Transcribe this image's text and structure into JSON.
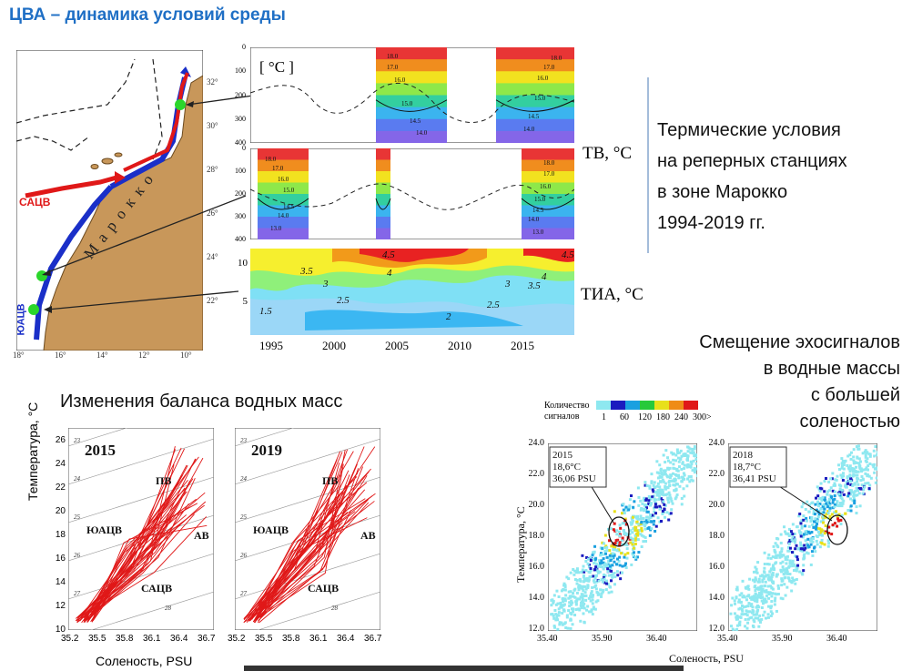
{
  "slide": {
    "title": "ЦВА – динамика условий среды",
    "caption_thermal": [
      "Термические условия",
      "на реперных станциях",
      "в зоне Марокко",
      "1994-2019 гг."
    ],
    "caption_balance": "Изменения баланса водных масс",
    "caption_echo": [
      "Смещение эхосигналов",
      "в водные массы",
      "с большей",
      "соленостью"
    ]
  },
  "map": {
    "country_label": "Марокко",
    "current_north": "САЦВ",
    "current_south": "ЮАЦВ",
    "lat_ticks": [
      "32°",
      "30°",
      "28°",
      "26°",
      "24°",
      "22°"
    ],
    "lon_ticks": [
      "18°",
      "16°",
      "14°",
      "12°",
      "10°"
    ]
  },
  "sections": {
    "unit_label": "[ °C ]",
    "tb_label": "ТВ, °C",
    "tia_label": "ТИА, °C",
    "depth_ticks": [
      "0",
      "100",
      "200",
      "300",
      "400"
    ],
    "year_ticks": [
      "1995",
      "2000",
      "2005",
      "2010",
      "2015"
    ],
    "tia_y_ticks": [
      "10",
      "5"
    ],
    "panel1_contours": [
      "18.0",
      "17.0",
      "16.0",
      "15.0",
      "14.5",
      "14.0",
      "18.0",
      "17.0",
      "16.0",
      "15.0",
      "14.5",
      "14.0"
    ],
    "panel2_contours": [
      "18.0",
      "17.0",
      "16.0",
      "15.0",
      "14.5",
      "14.0",
      "13.0",
      "18.0",
      "17.0",
      "16.0",
      "15.0",
      "14.5",
      "14.0",
      "13.0"
    ],
    "tia_contours": [
      "4.5",
      "3.5",
      "4",
      "3",
      "2.5",
      "1.5",
      "2",
      "2.5",
      "3",
      "3.5",
      "4",
      "4.5"
    ]
  },
  "ts_diagrams": {
    "ylabel": "Температура, °C",
    "xlabel": "Соленость, PSU",
    "y_ticks": [
      "26",
      "24",
      "22",
      "20",
      "18",
      "16",
      "14",
      "12",
      "10"
    ],
    "x_ticks": [
      "35.2",
      "35.5",
      "35.8",
      "36.1",
      "36.4",
      "36.7"
    ],
    "sigma_labels": [
      "23",
      "24",
      "25",
      "26",
      "27",
      "28"
    ],
    "panels": [
      {
        "year": "2015",
        "labels": {
          "pv": "ПВ",
          "yuatsv": "ЮАЦВ",
          "av": "АВ",
          "satsv": "САЦВ"
        }
      },
      {
        "year": "2019",
        "labels": {
          "pv": "ПВ",
          "yuatsv": "ЮАЦВ",
          "av": "АВ",
          "satsv": "САЦВ"
        }
      }
    ]
  },
  "echo": {
    "legend_title": [
      "Количество",
      "сигналов"
    ],
    "legend_values": [
      "1",
      "60",
      "120",
      "180",
      "240",
      "300>"
    ],
    "legend_colors": [
      "#8ee8f0",
      "#1b1bbf",
      "#1aa0e0",
      "#27c93a",
      "#e8e01a",
      "#ef8c16",
      "#e01818"
    ],
    "ylabel": "Температура, °C",
    "xlabel": "Соленость, PSU",
    "y_ticks": [
      "24.0",
      "22.0",
      "20.0",
      "18.0",
      "16.0",
      "14.0",
      "12.0"
    ],
    "x_ticks": [
      "35.40",
      "35.90",
      "36.40"
    ],
    "panels": [
      {
        "info": [
          "2015",
          "18,6°C",
          "36,06 PSU"
        ]
      },
      {
        "info": [
          "2018",
          "18,7°C",
          "36,41 PSU"
        ]
      }
    ]
  }
}
